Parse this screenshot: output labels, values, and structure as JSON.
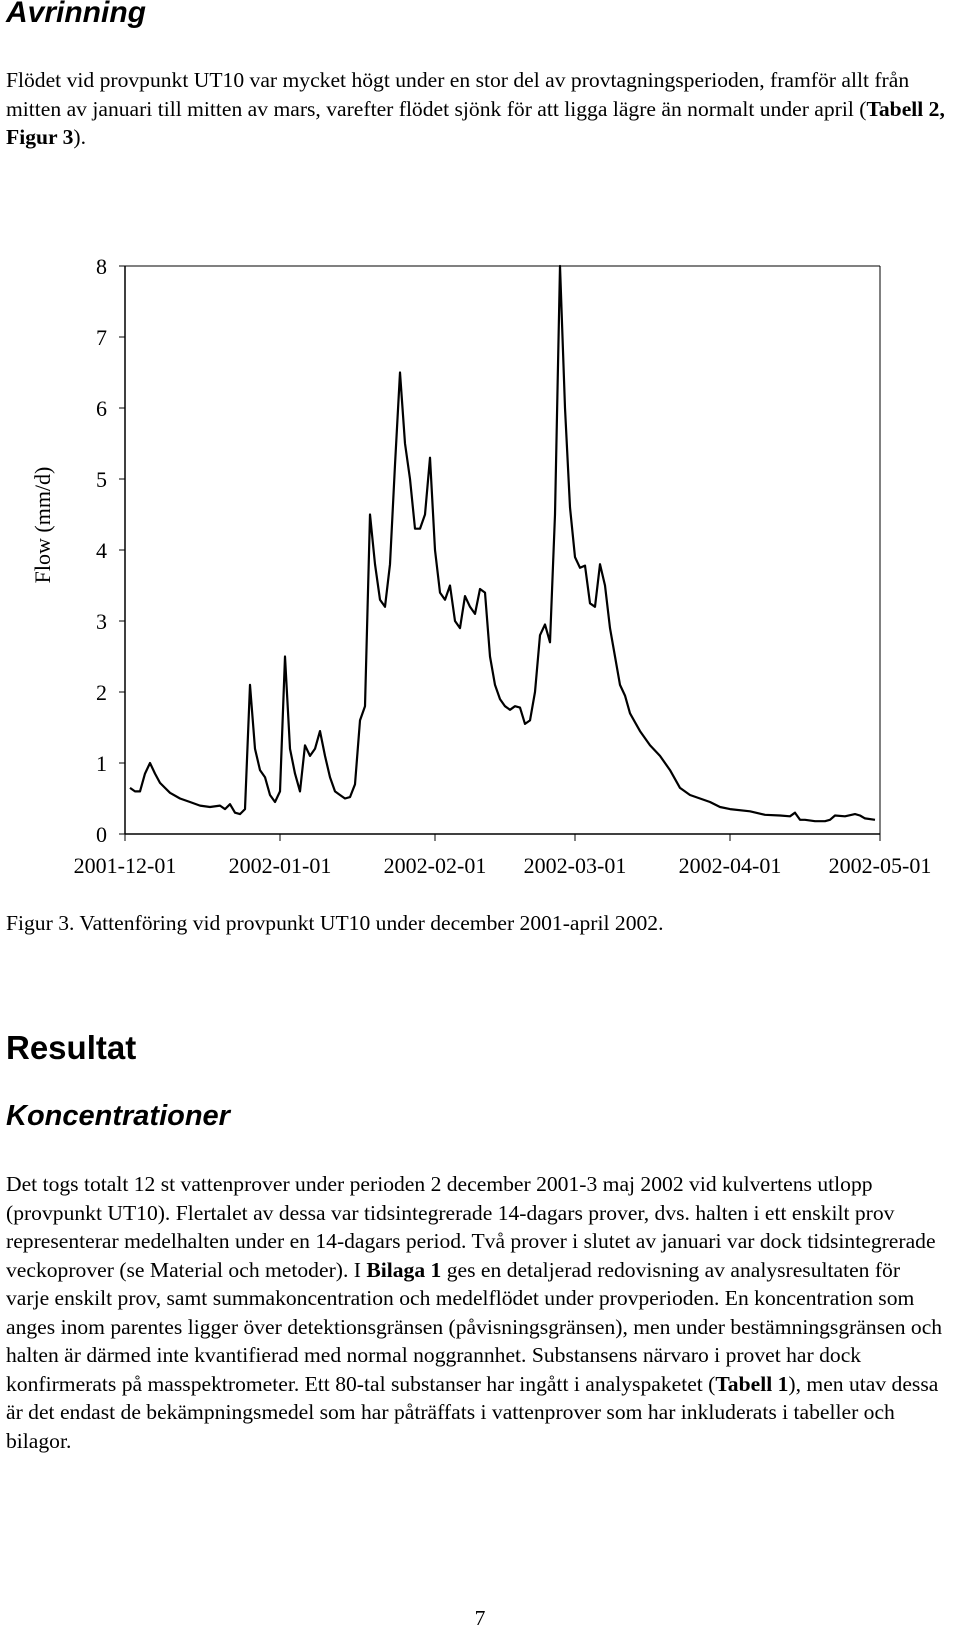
{
  "heading": "Avrinning",
  "intro": {
    "before": "Flödet vid provpunkt UT10 var mycket högt under en stor del av provtagningsperioden, framför allt från mitten av januari till mitten av mars, varefter flödet sjönk för att ligga lägre än normalt under april (",
    "bold": "Tabell 2, Figur 3",
    "after": ")."
  },
  "chart_data": {
    "type": "line",
    "ylabel": "Flow (mm/d)",
    "ylim": [
      0,
      8
    ],
    "yticks": [
      "0",
      "1",
      "2",
      "3",
      "4",
      "5",
      "6",
      "7",
      "8"
    ],
    "xlim": [
      "2001-12-01",
      "2002-05-01"
    ],
    "xtick_labels": [
      "2001-12-01",
      "2002-01-01",
      "2002-02-01",
      "2002-03-01",
      "2002-04-01",
      "2002-05-01"
    ],
    "grid": false,
    "legend": "none",
    "series": [
      {
        "x": [
          "2001-12-02",
          "2001-12-03",
          "2001-12-04",
          "2001-12-05",
          "2001-12-06",
          "2001-12-07",
          "2001-12-08",
          "2001-12-09",
          "2001-12-10",
          "2001-12-12",
          "2001-12-14",
          "2001-12-16",
          "2001-12-18",
          "2001-12-20",
          "2001-12-21",
          "2001-12-22",
          "2001-12-23",
          "2001-12-24",
          "2001-12-25",
          "2001-12-26",
          "2001-12-27",
          "2001-12-28",
          "2001-12-29",
          "2001-12-30",
          "2001-12-31",
          "2002-01-01",
          "2002-01-02",
          "2002-01-03",
          "2002-01-04",
          "2002-01-05",
          "2002-01-06",
          "2002-01-07",
          "2002-01-08",
          "2002-01-09",
          "2002-01-10",
          "2002-01-11",
          "2002-01-12",
          "2002-01-13",
          "2002-01-14",
          "2002-01-15",
          "2002-01-16",
          "2002-01-17",
          "2002-01-18",
          "2002-01-19",
          "2002-01-20",
          "2002-01-21",
          "2002-01-22",
          "2002-01-23",
          "2002-01-24",
          "2002-01-25",
          "2002-01-26",
          "2002-01-27",
          "2002-01-28",
          "2002-01-29",
          "2002-01-30",
          "2002-01-31",
          "2002-02-01",
          "2002-02-02",
          "2002-02-03",
          "2002-02-04",
          "2002-02-05",
          "2002-02-06",
          "2002-02-07",
          "2002-02-08",
          "2002-02-09",
          "2002-02-10",
          "2002-02-11",
          "2002-02-12",
          "2002-02-13",
          "2002-02-14",
          "2002-02-15",
          "2002-02-16",
          "2002-02-17",
          "2002-02-18",
          "2002-02-19",
          "2002-02-20",
          "2002-02-21",
          "2002-02-22",
          "2002-02-23",
          "2002-02-24",
          "2002-02-25",
          "2002-02-26",
          "2002-02-27",
          "2002-02-28",
          "2002-03-01",
          "2002-03-02",
          "2002-03-03",
          "2002-03-04",
          "2002-03-05",
          "2002-03-06",
          "2002-03-07",
          "2002-03-08",
          "2002-03-09",
          "2002-03-10",
          "2002-03-11",
          "2002-03-12",
          "2002-03-14",
          "2002-03-16",
          "2002-03-18",
          "2002-03-20",
          "2002-03-22",
          "2002-03-24",
          "2002-03-26",
          "2002-03-28",
          "2002-03-30",
          "2002-04-01",
          "2002-04-05",
          "2002-04-08",
          "2002-04-11",
          "2002-04-13",
          "2002-04-14",
          "2002-04-15",
          "2002-04-16",
          "2002-04-18",
          "2002-04-20",
          "2002-04-21",
          "2002-04-22",
          "2002-04-24",
          "2002-04-26",
          "2002-04-27",
          "2002-04-28",
          "2002-04-30"
        ],
        "y": [
          0.65,
          0.6,
          0.6,
          0.85,
          1.0,
          0.85,
          0.72,
          0.65,
          0.58,
          0.5,
          0.45,
          0.4,
          0.38,
          0.4,
          0.35,
          0.42,
          0.3,
          0.28,
          0.35,
          2.1,
          1.2,
          0.9,
          0.8,
          0.55,
          0.45,
          0.6,
          2.5,
          1.2,
          0.85,
          0.6,
          1.25,
          1.1,
          1.2,
          1.45,
          1.1,
          0.8,
          0.6,
          0.55,
          0.5,
          0.52,
          0.7,
          1.6,
          1.8,
          4.5,
          3.8,
          3.3,
          3.2,
          3.8,
          5.2,
          6.5,
          5.5,
          5.0,
          4.3,
          4.3,
          4.5,
          5.3,
          4.0,
          3.4,
          3.3,
          3.5,
          3.0,
          2.9,
          3.35,
          3.2,
          3.1,
          3.45,
          3.4,
          2.5,
          2.1,
          1.9,
          1.8,
          1.75,
          1.8,
          1.78,
          1.55,
          1.6,
          2.0,
          2.8,
          2.95,
          2.7,
          4.5,
          8.0,
          6.0,
          4.6,
          3.9,
          3.75,
          3.78,
          3.25,
          3.2,
          3.8,
          3.5,
          2.9,
          2.5,
          2.1,
          1.95,
          1.7,
          1.45,
          1.25,
          1.1,
          0.9,
          0.65,
          0.55,
          0.5,
          0.45,
          0.38,
          0.35,
          0.32,
          0.27,
          0.26,
          0.25,
          0.3,
          0.2,
          0.2,
          0.18,
          0.18,
          0.2,
          0.26,
          0.25,
          0.28,
          0.26,
          0.22,
          0.2
        ]
      }
    ]
  },
  "figure_caption": "Figur 3. Vattenföring vid provpunkt UT10 under december 2001-april 2002.",
  "section_heading": "Resultat",
  "sub_heading": "Koncentrationer",
  "body": {
    "part1": "Det togs totalt 12 st vattenprover under perioden 2 december 2001-3 maj 2002 vid kulvertens utlopp (provpunkt UT10). Flertalet av dessa var tidsintegrerade 14-dagars prover, dvs. halten i ett enskilt prov representerar medelhalten under en 14-dagars period. Två prover i slutet av januari var dock tidsintegrerade veckoprover (se Material och metoder). I ",
    "bold1": "Bilaga 1",
    "part2": " ges en detaljerad redovisning av analysresultaten för varje enskilt prov, samt summakoncentration och medelflödet under provperioden. En koncentration som anges inom parentes ligger över detektionsgränsen (påvisningsgränsen), men under bestämningsgränsen och halten är därmed inte kvantifierad med normal noggrannhet. Substansens närvaro i provet har dock konfirmerats på masspektrometer. Ett 80-tal substanser har ingått i analyspaketet (",
    "bold2": "Tabell 1",
    "part3": "), men utav dessa är det endast de bekämpningsmedel som har påträffats i vattenprover som har inkluderats i tabeller och bilagor."
  },
  "page_number": "7"
}
